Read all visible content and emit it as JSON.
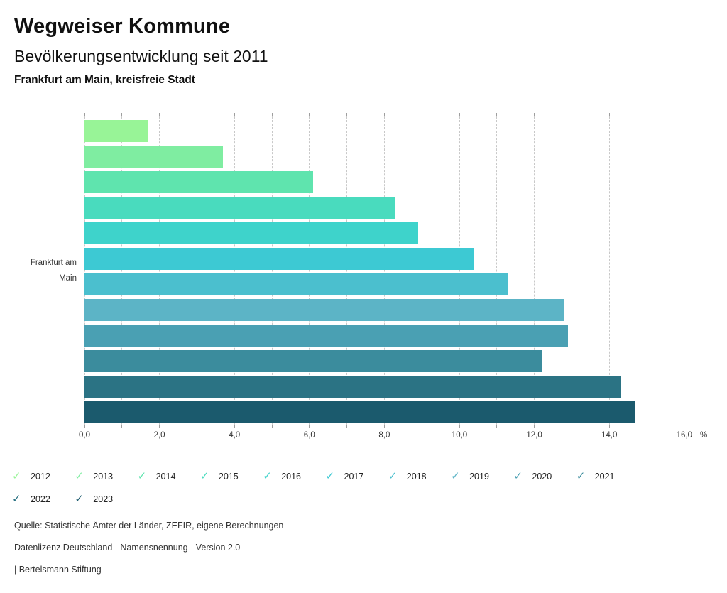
{
  "header": {
    "title": "Wegweiser Kommune",
    "subtitle": "Bevölkerungsentwicklung seit 2011",
    "region": "Frankfurt am Main, kreisfreie Stadt"
  },
  "chart_data": {
    "type": "bar",
    "orientation": "horizontal",
    "title": "Bevölkerungsentwicklung seit 2011",
    "category": "Frankfurt am Main",
    "category_label_lines": [
      "Frankfurt am",
      "Main"
    ],
    "series": [
      {
        "name": "2012",
        "value": 1.7,
        "color": "#98F497"
      },
      {
        "name": "2013",
        "value": 3.7,
        "color": "#7FEDA1"
      },
      {
        "name": "2014",
        "value": 6.1,
        "color": "#5FE4AE"
      },
      {
        "name": "2015",
        "value": 8.3,
        "color": "#49DBBE"
      },
      {
        "name": "2016",
        "value": 8.9,
        "color": "#3ED3CB"
      },
      {
        "name": "2017",
        "value": 10.4,
        "color": "#3DC9D3"
      },
      {
        "name": "2018",
        "value": 11.3,
        "color": "#4BBFCE"
      },
      {
        "name": "2019",
        "value": 12.8,
        "color": "#5CB4C6"
      },
      {
        "name": "2020",
        "value": 12.9,
        "color": "#4AA0B3"
      },
      {
        "name": "2021",
        "value": 12.2,
        "color": "#3B8C9D"
      },
      {
        "name": "2022",
        "value": 14.3,
        "color": "#2B7384"
      },
      {
        "name": "2023",
        "value": 14.7,
        "color": "#1B5A6D"
      }
    ],
    "xlim": [
      0,
      16
    ],
    "x_major_step": 2,
    "x_minor_step": 1,
    "x_tick_labels": [
      "0,0",
      "2,0",
      "4,0",
      "6,0",
      "8,0",
      "10,0",
      "12,0",
      "14,0",
      "16,0"
    ],
    "x_unit_label": "%",
    "grid": "vertical-dashed",
    "legend_position": "bottom"
  },
  "icons": {
    "check": "✓"
  },
  "footer": {
    "source": "Quelle: Statistische Ämter der Länder, ZEFIR, eigene Berechnungen",
    "license": "Datenlizenz Deutschland - Namensnennung - Version 2.0",
    "attribution": "| Bertelsmann Stiftung"
  },
  "colors": {
    "grid": "#C8C8C8",
    "tick": "#9E9E9E",
    "axis_text": "#333333",
    "heading_text": "#111111"
  }
}
